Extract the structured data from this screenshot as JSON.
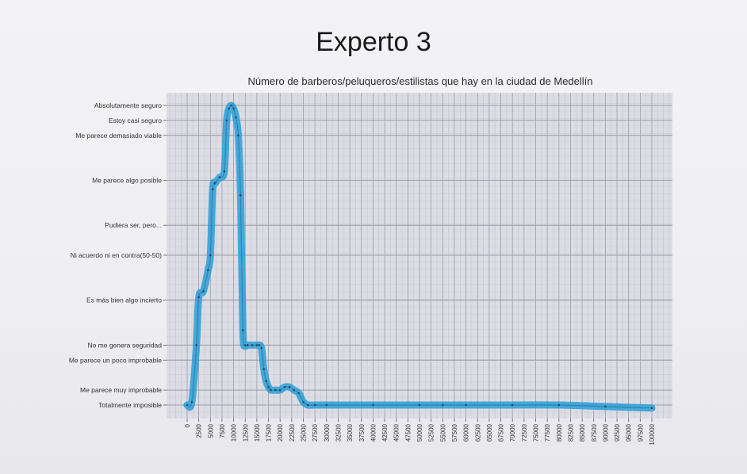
{
  "heading": "Experto 3",
  "chart_data": {
    "type": "line",
    "title": "Número de barberos/peluqueros/estilistas que hay en la ciudad de Medellín",
    "xlabel": "",
    "ylabel": "",
    "xlim": [
      0,
      100000
    ],
    "x_ticks": [
      "0",
      "2500",
      "5000",
      "7500",
      "10000",
      "12500",
      "15000",
      "17500",
      "20000",
      "22500",
      "25000",
      "27500",
      "30000",
      "32500",
      "35000",
      "37500",
      "40000",
      "42500",
      "45000",
      "47500",
      "50000",
      "52500",
      "55000",
      "57500",
      "60000",
      "62500",
      "65000",
      "67500",
      "70000",
      "72500",
      "75000",
      "77500",
      "80000",
      "82500",
      "85000",
      "87500",
      "90000",
      "92500",
      "95000",
      "97500",
      "100000"
    ],
    "y_levels": [
      {
        "label": "Absolutamente seguro",
        "value": 100
      },
      {
        "label": "Estoy casi seguro",
        "value": 95
      },
      {
        "label": "Me parece demasiado viable",
        "value": 90
      },
      {
        "label": "Me parece algo posible",
        "value": 75
      },
      {
        "label": "Pudiera ser, pero...",
        "value": 60
      },
      {
        "label": "Ni acuerdo ni en contra(50-50)",
        "value": 50
      },
      {
        "label": "Es más bien algo incierto",
        "value": 35
      },
      {
        "label": "No me genera seguridad",
        "value": 20
      },
      {
        "label": "Me parece un poco improbable",
        "value": 15
      },
      {
        "label": "Me parece muy improbable",
        "value": 5
      },
      {
        "label": "Totalmente imposible",
        "value": 0
      }
    ],
    "ylim": [
      0,
      100
    ],
    "grid": true,
    "series": [
      {
        "color": "#2a9fd6",
        "x": [
          0,
          1000,
          2000,
          2500,
          3500,
          4500,
          5000,
          5500,
          6000,
          7000,
          8000,
          8500,
          9000,
          9500,
          10000,
          10500,
          11000,
          11500,
          12000,
          12500,
          13000,
          14000,
          15000,
          15500,
          16000,
          16500,
          17000,
          17500,
          18000,
          19000,
          20000,
          21000,
          22000,
          23000,
          24000,
          25000,
          26000,
          27500,
          30000,
          40000,
          50000,
          55000,
          60000,
          70000,
          80000,
          90000,
          100000
        ],
        "y": [
          0,
          1,
          20,
          36,
          38,
          45,
          50,
          72,
          74,
          76,
          78,
          95,
          99,
          100,
          99,
          96,
          90,
          70,
          25,
          20,
          20,
          20,
          20,
          20,
          19,
          12,
          8,
          6,
          5,
          5,
          5,
          6,
          6,
          5,
          4,
          1,
          0,
          0,
          0,
          0,
          0,
          0,
          0,
          0,
          0,
          -0.5,
          -1
        ]
      }
    ]
  }
}
